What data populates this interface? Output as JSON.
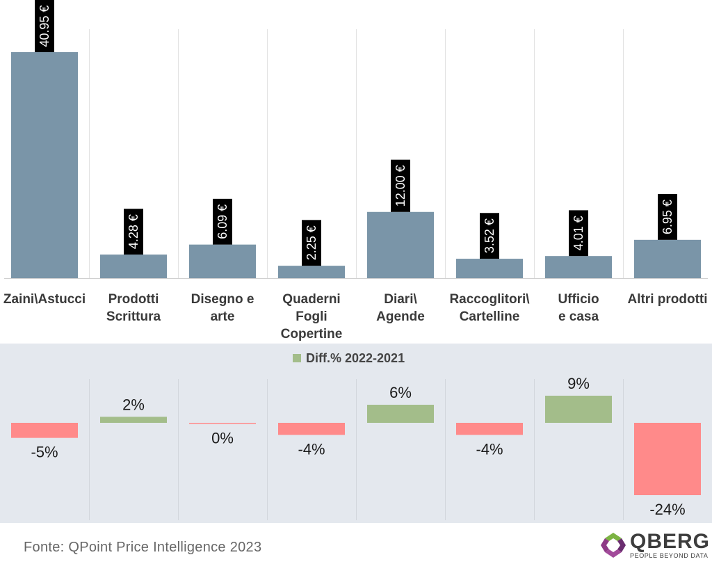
{
  "chart_data": [
    {
      "type": "bar",
      "categories": [
        [
          "Zaini\\Astucci"
        ],
        [
          "Prodotti",
          "Scrittura"
        ],
        [
          "Disegno e",
          "arte"
        ],
        [
          "Quaderni",
          "Fogli",
          "Copertine"
        ],
        [
          "Diari\\",
          "Agende"
        ],
        [
          "Raccoglitori\\",
          "Cartelline"
        ],
        [
          "Ufficio",
          "e casa"
        ],
        [
          "Altri prodotti"
        ]
      ],
      "values": [
        40.95,
        4.28,
        6.09,
        2.25,
        12.0,
        3.52,
        4.01,
        6.95
      ],
      "value_labels": [
        "40.95 €",
        "4.28 €",
        "6.09 €",
        "2.25 €",
        "12.00 €",
        "3.52 €",
        "4.01 €",
        "6.95 €"
      ],
      "bar_color": "#7a95a8",
      "label_bg": "#000000"
    },
    {
      "type": "bar",
      "legend": "Diff.% 2022-2021",
      "values": [
        -5,
        2,
        0,
        -4,
        6,
        -4,
        9,
        -24
      ],
      "value_labels": [
        "-5%",
        "2%",
        "0%",
        "-4%",
        "6%",
        "-4%",
        "9%",
        "-24%"
      ],
      "positive_color": "#a3bd8a",
      "negative_color": "#ff8a8a",
      "background": "#e4e8ee"
    }
  ],
  "footer": {
    "source": "Fonte: QPoint Price Intelligence 2023",
    "logo_name": "QBERG",
    "logo_tagline": "PEOPLE BEYOND DATA"
  }
}
